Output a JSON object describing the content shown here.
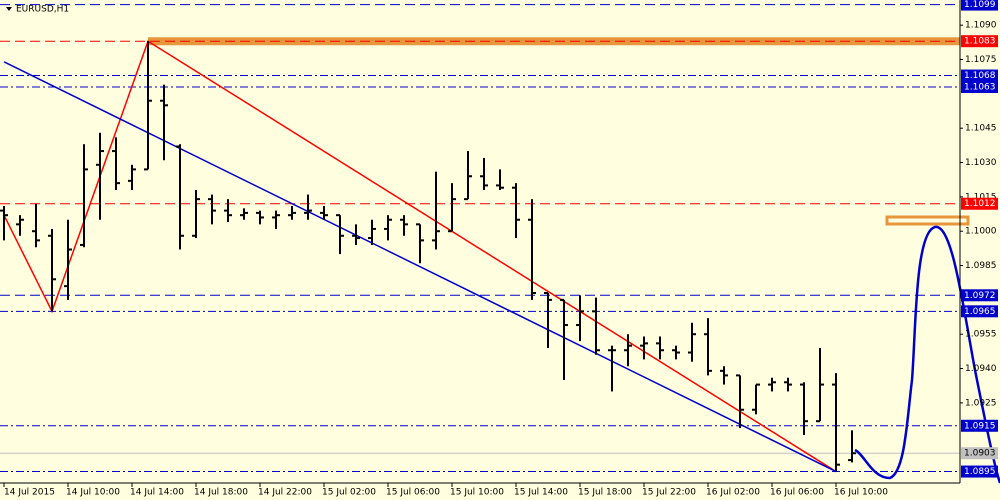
{
  "chart_data": {
    "type": "ohlc",
    "title": "EURUSD,H1",
    "background": "#ffffe0",
    "color": "#000000",
    "categories": [
      "14 Jul 2015",
      null,
      null,
      null,
      "14 Jul 10:00",
      null,
      null,
      null,
      "14 Jul 14:00",
      null,
      null,
      null,
      "14 Jul 18:00",
      null,
      null,
      null,
      "14 Jul 22:00",
      null,
      null,
      null,
      "15 Jul 02:00",
      null,
      null,
      null,
      "15 Jul 06:00",
      null,
      null,
      null,
      "15 Jul 10:00",
      null,
      null,
      null,
      "15 Jul 14:00",
      null,
      null,
      null,
      "15 Jul 18:00",
      null,
      null,
      null,
      "15 Jul 22:00",
      null,
      null,
      null,
      "16 Jul 02:00",
      null,
      null,
      null,
      "16 Jul 06:00",
      null,
      null,
      null,
      "16 Jul 10:00",
      null
    ],
    "open": [
      1.1009,
      1.1003,
      1.1,
      1.0998,
      1.0976,
      1.0994,
      1.1029,
      1.1035,
      1.1022,
      1.1027,
      1.1057,
      1.1037,
      1.0998,
      1.1014,
      1.1009,
      1.1007,
      1.1008,
      1.1006,
      1.1007,
      1.1008,
      1.1008,
      1.1007,
      1.0998,
      1.0997,
      1.1001,
      1.1005,
      1.1003,
      1.0996,
      1.1,
      1.1014,
      1.1024,
      1.102,
      1.1019,
      1.1005,
      1.0973,
      1.097,
      1.0959,
      1.0965,
      1.0948,
      1.0948,
      1.095,
      1.0951,
      1.0948,
      1.0947,
      1.0955,
      1.0939,
      1.0937,
      1.0922,
      1.0933,
      1.0934,
      1.0933,
      1.0917,
      1.0933,
      1.09
    ],
    "high": [
      1.1011,
      1.1007,
      1.1012,
      1.1001,
      1.1005,
      1.1038,
      1.1043,
      1.1041,
      1.1029,
      1.1083,
      1.1064,
      1.1038,
      1.1018,
      1.1016,
      1.1014,
      1.101,
      1.1009,
      1.1009,
      1.1011,
      1.1016,
      1.1011,
      1.1007,
      1.1003,
      1.1005,
      1.1007,
      1.1007,
      1.1003,
      1.1026,
      1.1021,
      1.1035,
      1.1032,
      1.1027,
      1.1021,
      1.1014,
      1.0973,
      1.097,
      1.0972,
      1.0971,
      1.095,
      1.0955,
      1.0954,
      1.0954,
      1.095,
      1.096,
      1.0962,
      1.0941,
      1.0937,
      1.0933,
      1.0936,
      1.0936,
      1.0934,
      1.0949,
      1.0938,
      1.0913
    ],
    "low": [
      1.0996,
      1.0998,
      1.0993,
      1.0965,
      1.097,
      1.0993,
      1.1005,
      1.1018,
      1.1018,
      1.1027,
      1.1031,
      1.0992,
      1.0997,
      1.1003,
      1.1004,
      1.1005,
      1.1003,
      1.1001,
      1.1005,
      1.1005,
      1.1005,
      1.099,
      1.0994,
      1.0994,
      1.0996,
      1.0998,
      1.0986,
      1.0992,
      1.1,
      1.1014,
      1.1018,
      1.1018,
      1.0997,
      1.097,
      1.0949,
      1.0935,
      1.0952,
      1.0946,
      1.093,
      1.0941,
      1.0944,
      1.0944,
      1.0944,
      1.0943,
      1.0937,
      1.0933,
      1.0914,
      1.092,
      1.093,
      1.093,
      1.0911,
      1.0917,
      1.0895,
      1.0899
    ],
    "close": [
      1.1007,
      1.1005,
      1.0996,
      1.0979,
      1.0992,
      1.1027,
      1.1035,
      1.1021,
      1.1027,
      1.1057,
      1.1055,
      1.0998,
      1.1014,
      1.1009,
      1.1007,
      1.1008,
      1.1006,
      1.1007,
      1.1008,
      1.1009,
      1.1007,
      1.0998,
      1.0997,
      1.1001,
      1.1005,
      1.1003,
      1.0996,
      1.1,
      1.1014,
      1.1024,
      1.102,
      1.1019,
      1.1005,
      1.0973,
      1.097,
      1.0959,
      1.0965,
      1.0948,
      1.0948,
      1.095,
      1.0951,
      1.0948,
      1.0947,
      1.0955,
      1.0939,
      1.0937,
      1.0922,
      1.0933,
      1.0934,
      1.0933,
      1.0917,
      1.0933,
      1.0898,
      1.0903
    ],
    "ylim": [
      1.089,
      1.1101
    ],
    "yticks": [
      {
        "value": 1.109,
        "label": "1.1090"
      },
      {
        "value": 1.1075,
        "label": "1.1075"
      },
      {
        "value": 1.1045,
        "label": "1.1045"
      },
      {
        "value": 1.103,
        "label": "1.1030"
      },
      {
        "value": 1.1015,
        "label": "1.1015"
      },
      {
        "value": 1.1,
        "label": "1.1000"
      },
      {
        "value": 1.0985,
        "label": "1.0985"
      },
      {
        "value": 1.0955,
        "label": "1.0955"
      },
      {
        "value": 1.094,
        "label": "1.0940"
      },
      {
        "value": 1.0925,
        "label": "1.0925"
      }
    ],
    "levels": [
      {
        "value": 1.1099,
        "label": "1.1099",
        "color": "#0000cd",
        "style": "dash"
      },
      {
        "value": 1.1083,
        "label": "1.1083",
        "color": "#ff0000",
        "style": "dash",
        "highlight": "#e8963c",
        "highlight_from": 9
      },
      {
        "value": 1.1068,
        "label": "1.1068",
        "color": "#0000cd",
        "style": "dashdot"
      },
      {
        "value": 1.1063,
        "label": "1.1063",
        "color": "#0000cd",
        "style": "dashdot"
      },
      {
        "value": 1.1012,
        "label": "1.1012",
        "color": "#ff0000",
        "style": "dash"
      },
      {
        "value": 1.0972,
        "label": "1.0972",
        "color": "#0000cd",
        "style": "dash"
      },
      {
        "value": 1.0965,
        "label": "1.0965",
        "color": "#0000cd",
        "style": "dashdot"
      },
      {
        "value": 1.0915,
        "label": "1.0915",
        "color": "#0000cd",
        "style": "dashdot"
      },
      {
        "value": 1.0903,
        "label": "1.0903",
        "color": "#c0c0c0",
        "style": "solid"
      },
      {
        "value": 1.0895,
        "label": "1.0895",
        "color": "#0000cd",
        "style": "dashdot"
      }
    ],
    "trendlines": [
      {
        "color": "#ff0000",
        "points": [
          {
            "x": 0,
            "y": 1.1007
          },
          {
            "x": 3,
            "y": 1.0965
          },
          {
            "x": 9,
            "y": 1.1083
          },
          {
            "x": 52,
            "y": 1.0895
          }
        ]
      },
      {
        "color": "#0000cd",
        "points": [
          {
            "x": 0,
            "y": 1.1074
          },
          {
            "x": 52,
            "y": 1.0895
          }
        ]
      }
    ]
  }
}
